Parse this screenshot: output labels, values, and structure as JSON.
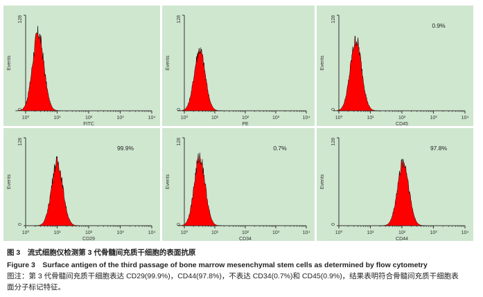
{
  "figure": {
    "caption_zh": "图 3　流式细胞仪检测第 3 代骨髓间充质干细胞的表面抗原",
    "caption_en": "Figure 3　Surface antigen of the third passage of bone marrow mesenchymal stem cells as determined by flow cytometry",
    "note_line1": "图注：第 3 代骨髓间充质干细胞表达 CD29(99.9%)，CD44(97.8%)，不表达 CD34(0.7%)和 CD45(0.9%)，结果表明符合骨髓间充质干细胞表",
    "note_line2": "面分子标记特征。"
  },
  "colors": {
    "panel_bg": "#cfe6cf",
    "histogram_fill": "#ff0000",
    "axis": "#333333"
  },
  "chart_data": [
    {
      "type": "area",
      "xlabel": "FITC",
      "ylabel": "Events",
      "percent": "",
      "x_scale": "log",
      "xlim": [
        1,
        10000
      ],
      "ylim": [
        0,
        128
      ],
      "x_ticks": [
        "10⁰",
        "10¹",
        "10²",
        "10³",
        "10⁴"
      ],
      "y_ticks": [
        "0",
        "128"
      ],
      "peak_x": 2.5,
      "peak_y": 104
    },
    {
      "type": "area",
      "xlabel": "PE",
      "ylabel": "Events",
      "percent": "",
      "x_scale": "log",
      "xlim": [
        1,
        10000
      ],
      "ylim": [
        0,
        128
      ],
      "x_ticks": [
        "10⁰",
        "10¹",
        "10²",
        "10³",
        "10⁴"
      ],
      "y_ticks": [
        "0",
        "128"
      ],
      "peak_x": 3.2,
      "peak_y": 82
    },
    {
      "type": "area",
      "xlabel": "CD45",
      "ylabel": "Events",
      "percent": "0.9%",
      "x_scale": "log",
      "xlim": [
        1,
        10000
      ],
      "ylim": [
        0,
        128
      ],
      "x_ticks": [
        "10⁰",
        "10¹",
        "10²",
        "10³",
        "10⁴"
      ],
      "y_ticks": [
        "0",
        "128"
      ],
      "peak_x": 3.5,
      "peak_y": 95
    },
    {
      "type": "area",
      "xlabel": "CD29",
      "ylabel": "Events",
      "percent": "99.9%",
      "x_scale": "log",
      "xlim": [
        1,
        10000
      ],
      "ylim": [
        0,
        128
      ],
      "x_ticks": [
        "10⁰",
        "10¹",
        "10²",
        "10³",
        "10⁴"
      ],
      "y_ticks": [
        "0",
        "128"
      ],
      "peak_x": 10,
      "peak_y": 93
    },
    {
      "type": "area",
      "xlabel": "CD34",
      "ylabel": "Events",
      "percent": "0.7%",
      "x_scale": "log",
      "xlim": [
        1,
        10000
      ],
      "ylim": [
        0,
        128
      ],
      "x_ticks": [
        "10⁰",
        "10¹",
        "10²",
        "10³",
        "10⁴"
      ],
      "y_ticks": [
        "0",
        "128"
      ],
      "peak_x": 3.2,
      "peak_y": 100
    },
    {
      "type": "area",
      "xlabel": "CD44",
      "ylabel": "Events",
      "percent": "97.8%",
      "x_scale": "log",
      "xlim": [
        1,
        10000
      ],
      "ylim": [
        0,
        128
      ],
      "x_ticks": [
        "10⁰",
        "10¹",
        "10²",
        "10³",
        "10⁴"
      ],
      "y_ticks": [
        "0",
        "128"
      ],
      "peak_x": 110,
      "peak_y": 93
    }
  ]
}
